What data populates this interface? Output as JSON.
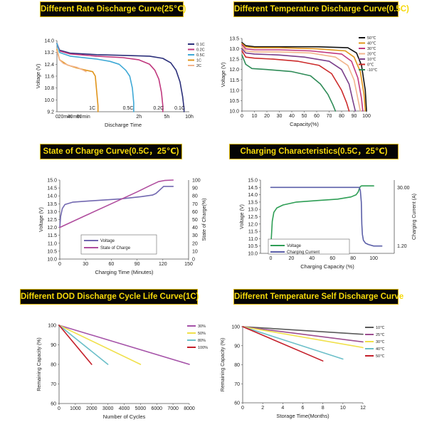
{
  "chart_data": [
    {
      "id": "rate",
      "type": "line",
      "title": "Different Rate Discharge Curve(25℃)",
      "xlabel": "Discharge Time",
      "ylabel": "Voltage (V)",
      "ylim": [
        9.2,
        14.0
      ],
      "yticks": [
        "14.0",
        "13.2",
        "12.4",
        "11.6",
        "10.8",
        "10.0",
        "9.2"
      ],
      "xticks": [
        "0",
        "20min",
        "40min",
        "60min",
        "2h",
        "5h",
        "10h"
      ],
      "legend": [
        "0.1C",
        "0.2C",
        "0.5C",
        "1C",
        "2C"
      ],
      "colors": [
        "#2b2f7a",
        "#c0387e",
        "#3fa9d6",
        "#e0941a",
        "#f2b48c"
      ],
      "annotations": [
        "1C",
        "0.5C",
        "0.2C",
        "0.1C"
      ],
      "series": [
        {
          "name": "0.1C",
          "x": [
            0,
            0.02,
            0.1,
            0.3,
            0.5,
            0.7,
            0.8,
            0.86,
            0.9,
            0.93,
            0.95,
            0.96,
            0.96
          ],
          "y": [
            13.8,
            13.35,
            13.15,
            13.05,
            13.0,
            12.95,
            12.8,
            12.5,
            12.0,
            11.2,
            10.2,
            9.4,
            9.2
          ]
        },
        {
          "name": "0.2C",
          "x": [
            0,
            0.02,
            0.1,
            0.3,
            0.5,
            0.62,
            0.7,
            0.74,
            0.77,
            0.79,
            0.8,
            0.8
          ],
          "y": [
            13.8,
            13.3,
            13.1,
            12.95,
            12.85,
            12.7,
            12.4,
            12.0,
            11.4,
            10.5,
            9.6,
            9.2
          ]
        },
        {
          "name": "0.5C",
          "x": [
            0,
            0.02,
            0.1,
            0.3,
            0.4,
            0.47,
            0.52,
            0.55,
            0.57,
            0.58,
            0.58
          ],
          "y": [
            13.8,
            13.2,
            12.95,
            12.75,
            12.6,
            12.4,
            12.0,
            11.6,
            10.8,
            9.8,
            9.2
          ]
        },
        {
          "name": "1C",
          "x": [
            0,
            0.02,
            0.08,
            0.15,
            0.22,
            0.27,
            0.29,
            0.3,
            0.31,
            0.31
          ],
          "y": [
            13.4,
            12.7,
            12.35,
            12.15,
            12.0,
            11.9,
            11.6,
            10.6,
            9.6,
            9.2
          ]
        },
        {
          "name": "2C",
          "x": [
            0,
            0.02,
            0.05,
            0.1,
            0.15,
            0.2,
            0.22
          ],
          "y": [
            13.3,
            12.7,
            12.45,
            12.3,
            12.2,
            12.0,
            11.9
          ]
        }
      ]
    },
    {
      "id": "temp",
      "type": "line",
      "title": "Different Temperature Discharge Curve(0.5C)",
      "xlabel": "Capacity(%)",
      "ylabel": "Voltage (V)",
      "xlim": [
        0,
        100
      ],
      "ylim": [
        10.0,
        13.5
      ],
      "yticks": [
        "13.5",
        "13.0",
        "12.5",
        "12.0",
        "11.5",
        "11.0",
        "10.5",
        "10.0"
      ],
      "xticks": [
        "0",
        "10",
        "20",
        "30",
        "40",
        "50",
        "60",
        "70",
        "80",
        "90",
        "100"
      ],
      "legend": [
        "50℃",
        "40℃",
        "30℃",
        "20℃",
        "10℃",
        "0℃",
        "-10℃"
      ],
      "colors": [
        "#111111",
        "#e0941a",
        "#c0387e",
        "#f2b48c",
        "#7a3f8a",
        "#cc2b2b",
        "#2e8b57"
      ],
      "series": [
        {
          "name": "50℃",
          "x": [
            0,
            3,
            10,
            30,
            60,
            85,
            92,
            96,
            99,
            100
          ],
          "y": [
            13.3,
            13.15,
            13.1,
            13.1,
            13.1,
            13.05,
            12.8,
            12.2,
            11.0,
            10.0
          ]
        },
        {
          "name": "40℃",
          "x": [
            0,
            3,
            10,
            30,
            60,
            83,
            90,
            95,
            98,
            99
          ],
          "y": [
            13.25,
            13.1,
            13.05,
            13.05,
            13.0,
            12.9,
            12.6,
            11.9,
            10.8,
            10.0
          ]
        },
        {
          "name": "30℃",
          "x": [
            0,
            3,
            10,
            30,
            55,
            80,
            88,
            93,
            96,
            97
          ],
          "y": [
            13.2,
            13.0,
            12.95,
            12.95,
            12.9,
            12.75,
            12.4,
            11.6,
            10.6,
            10.0
          ]
        },
        {
          "name": "20℃",
          "x": [
            0,
            3,
            10,
            30,
            55,
            75,
            85,
            90,
            93,
            95
          ],
          "y": [
            13.1,
            12.9,
            12.85,
            12.85,
            12.8,
            12.6,
            12.2,
            11.5,
            10.6,
            10.0
          ]
        },
        {
          "name": "10℃",
          "x": [
            0,
            3,
            10,
            30,
            50,
            70,
            80,
            86,
            89,
            91
          ],
          "y": [
            13.0,
            12.8,
            12.75,
            12.7,
            12.6,
            12.4,
            12.0,
            11.3,
            10.5,
            10.0
          ]
        },
        {
          "name": "0℃",
          "x": [
            0,
            3,
            10,
            25,
            45,
            62,
            72,
            80,
            84,
            86
          ],
          "y": [
            12.9,
            12.6,
            12.55,
            12.5,
            12.4,
            12.2,
            11.8,
            11.0,
            10.4,
            10.0
          ]
        },
        {
          "name": "-10℃",
          "x": [
            0,
            3,
            8,
            20,
            40,
            55,
            63,
            69,
            73,
            75
          ],
          "y": [
            12.7,
            12.25,
            12.05,
            12.0,
            11.9,
            11.7,
            11.3,
            10.8,
            10.3,
            10.0
          ]
        }
      ]
    },
    {
      "id": "soc",
      "type": "line",
      "title": "State of Charge Curve(0.5C，25℃)",
      "xlabel": "Charging Time (Minutes)",
      "ylabel": "Voltage (V)",
      "ylabel_right": "State of Charge(%)",
      "xlim": [
        0,
        150
      ],
      "ylim": [
        10.0,
        15.0
      ],
      "ylim_right": [
        0,
        100
      ],
      "yticks": [
        "15.0",
        "14.5",
        "14.0",
        "13.5",
        "13.0",
        "12.5",
        "12.0",
        "11.5",
        "11.0",
        "10.5",
        "10.0"
      ],
      "yticks_right": [
        "100",
        "90",
        "80",
        "70",
        "60",
        "50",
        "40",
        "30",
        "20",
        "10",
        "0"
      ],
      "xticks": [
        "0",
        "30",
        "60",
        "90",
        "120",
        "150"
      ],
      "legend": [
        "Voltage",
        "State of Charge"
      ],
      "colors": [
        "#7268b0",
        "#b04d9e"
      ],
      "series": [
        {
          "name": "Voltage",
          "axis": "left",
          "x": [
            0,
            1,
            3,
            6,
            15,
            40,
            70,
            95,
            108,
            112,
            115,
            118,
            121,
            124,
            132
          ],
          "y": [
            12.0,
            12.7,
            13.2,
            13.45,
            13.6,
            13.7,
            13.8,
            13.95,
            14.05,
            14.15,
            14.3,
            14.45,
            14.6,
            14.6,
            14.6
          ]
        },
        {
          "name": "State of Charge",
          "axis": "right",
          "x": [
            0,
            30,
            60,
            90,
            105,
            115,
            122,
            132
          ],
          "y": [
            40,
            55,
            70,
            85,
            93,
            98,
            99.5,
            100
          ]
        }
      ]
    },
    {
      "id": "charging",
      "type": "line",
      "title": "Charging Characteristics(0.5C，25℃)",
      "xlabel": "Charging Capacity (%)",
      "ylabel": "Voltage (V)",
      "ylabel_right": "Charging Current (A)",
      "xlim": [
        -10,
        120
      ],
      "ylim": [
        10.0,
        15.0
      ],
      "yticks": [
        "15.0",
        "14.5",
        "14.0",
        "13.5",
        "13.0",
        "12.5",
        "12.0",
        "11.5",
        "11.0",
        "10.5",
        "10.0"
      ],
      "xticks": [
        "0",
        "20",
        "40",
        "60",
        "80",
        "100"
      ],
      "yticks_right": [
        "30.00",
        "1.20"
      ],
      "legend": [
        "Voltage",
        "Charging Current"
      ],
      "colors": [
        "#2e9e55",
        "#5b5fa8"
      ],
      "series": [
        {
          "name": "Voltage",
          "x": [
            0,
            0.5,
            1.5,
            3,
            6,
            12,
            25,
            45,
            65,
            78,
            83,
            85,
            86,
            87,
            88,
            88.5,
            100
          ],
          "y": [
            10.0,
            11.0,
            12.2,
            12.8,
            13.1,
            13.3,
            13.5,
            13.6,
            13.7,
            13.85,
            14.0,
            14.2,
            14.4,
            14.55,
            14.6,
            14.6,
            14.6
          ]
        },
        {
          "name": "Charging Current",
          "x": [
            0,
            86,
            87,
            88,
            88.5,
            89,
            90,
            92,
            95,
            100,
            108
          ],
          "y": [
            14.5,
            14.5,
            14.3,
            13.5,
            12.0,
            11.3,
            10.9,
            10.7,
            10.6,
            10.5,
            10.5
          ]
        }
      ]
    },
    {
      "id": "dod",
      "type": "line",
      "title": "Different DOD Discharge Cycle Life Curve(1C)",
      "xlabel": "Number of Cycles",
      "ylabel": "Remaining Capacity (%)",
      "xlim": [
        0,
        8000
      ],
      "ylim": [
        60,
        100
      ],
      "yticks": [
        "100",
        "90",
        "80",
        "70",
        "60"
      ],
      "xticks": [
        "0",
        "1000",
        "2000",
        "3000",
        "4000",
        "5000",
        "6000",
        "7000",
        "8000"
      ],
      "legend": [
        "30%",
        "50%",
        "80%",
        "100%"
      ],
      "colors": [
        "#a552a8",
        "#f0e04a",
        "#6bbfc9",
        "#c41f2a"
      ],
      "series": [
        {
          "name": "30%",
          "x": [
            0,
            8000
          ],
          "y": [
            100,
            80
          ]
        },
        {
          "name": "50%",
          "x": [
            0,
            5000
          ],
          "y": [
            100,
            80
          ]
        },
        {
          "name": "80%",
          "x": [
            0,
            3000
          ],
          "y": [
            100,
            80
          ]
        },
        {
          "name": "100%",
          "x": [
            0,
            2000
          ],
          "y": [
            100,
            80
          ]
        }
      ]
    },
    {
      "id": "self",
      "type": "line",
      "title": "Different Temperature Self Discharge Curve",
      "xlabel": "Storage Time(Months)",
      "ylabel": "Remaining Capacity (%)",
      "xlim": [
        0,
        12
      ],
      "ylim": [
        60,
        100
      ],
      "yticks": [
        "100",
        "90",
        "80",
        "70",
        "60"
      ],
      "xticks": [
        "0",
        "2",
        "4",
        "6",
        "8",
        "10",
        "12"
      ],
      "legend": [
        "10℃",
        "25℃",
        "30℃",
        "40℃",
        "50℃"
      ],
      "colors": [
        "#5a5a5a",
        "#9c4d8f",
        "#f0e04a",
        "#6bbfc9",
        "#c41f2a"
      ],
      "series": [
        {
          "name": "10℃",
          "x": [
            0,
            12
          ],
          "y": [
            100,
            96
          ]
        },
        {
          "name": "25℃",
          "x": [
            0,
            12
          ],
          "y": [
            100,
            92
          ]
        },
        {
          "name": "30℃",
          "x": [
            0,
            12
          ],
          "y": [
            100,
            89
          ]
        },
        {
          "name": "40℃",
          "x": [
            0,
            10
          ],
          "y": [
            100,
            83
          ]
        },
        {
          "name": "50℃",
          "x": [
            0,
            8
          ],
          "y": [
            100,
            82
          ]
        }
      ]
    }
  ]
}
